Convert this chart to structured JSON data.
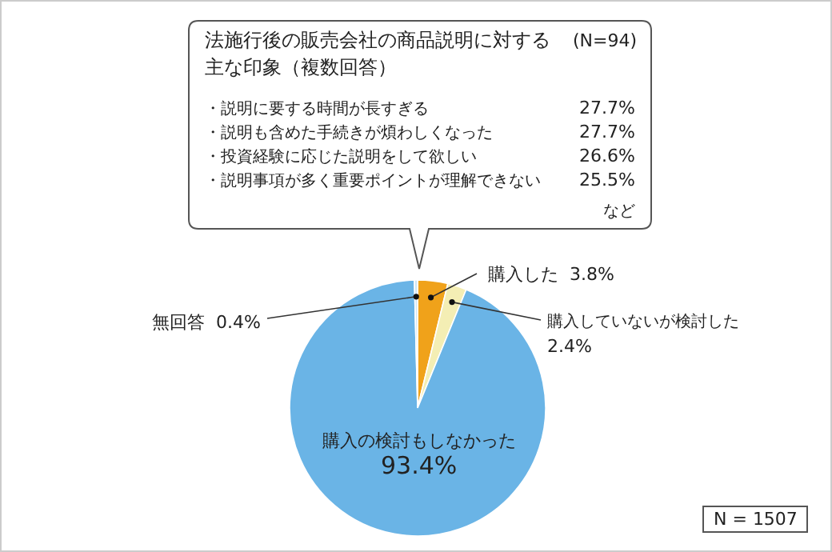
{
  "chart_data": {
    "type": "pie",
    "categories": [
      "購入した",
      "購入していないが検討した",
      "購入の検討もしなかった",
      "無回答"
    ],
    "values": [
      3.8,
      2.4,
      93.4,
      0.4
    ],
    "colors": [
      "#f0a21a",
      "#f4eeb4",
      "#6ab4e6",
      "#cfe6f6"
    ],
    "value_labels": [
      "3.8%",
      "2.4%",
      "93.4%",
      "0.4%"
    ],
    "annotations": [
      "法施行後の販売会社の商品説明に対する主な印象（複数回答）",
      "(N=94)",
      "・説明に要する時間が長すぎる",
      "27.7%",
      "・説明も含めた手続きが煩わしくなった",
      "27.7%",
      "・投資経験に応じた説明をして欲しい",
      "26.6%",
      "・説明事項が多く重要ポイントが理解できない",
      "25.5%",
      "など",
      "N = 1507"
    ]
  }
}
